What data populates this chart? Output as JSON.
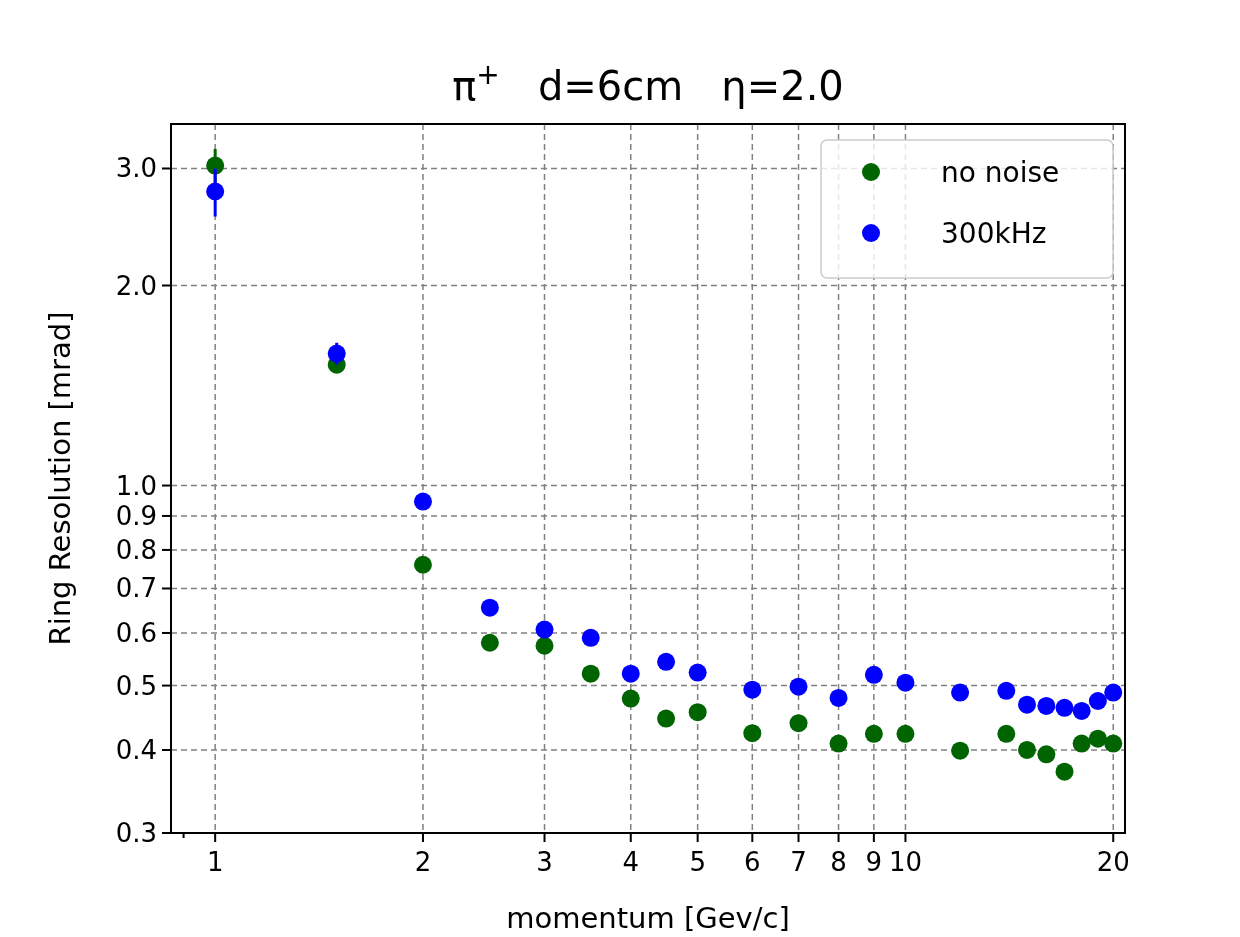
{
  "chart_data": {
    "type": "scatter",
    "title": "π$^{+}$   d=6cm   η=2.0",
    "xlabel": "momentum [Gev/c]",
    "ylabel": "Ring Resolution [mrad]",
    "log": "xy",
    "grid": true,
    "legend": "top right",
    "marker": "circle",
    "xlim": [
      0.863,
      20.8
    ],
    "ylim": [
      0.3,
      3.5
    ],
    "xticks": [
      {
        "value": 0.9,
        "label": null
      },
      1,
      2,
      3,
      4,
      5,
      6,
      7,
      8,
      9,
      10,
      20
    ],
    "yticks": [
      0.3,
      0.4,
      0.5,
      0.6,
      0.7,
      0.8,
      0.9,
      {
        "value": 1,
        "label": "1.0"
      },
      {
        "value": 2,
        "label": "2.0"
      },
      {
        "value": 3,
        "label": "3.0"
      }
    ],
    "x": [
      1,
      1.5,
      2,
      2.5,
      3,
      3.5,
      4,
      4.5,
      5,
      6,
      7,
      8,
      9,
      10,
      12,
      14,
      15,
      16,
      17,
      18,
      19,
      20
    ],
    "series": [
      {
        "name": "no noise",
        "color": "#006400",
        "values": [
          3.03,
          1.52,
          0.76,
          0.58,
          0.574,
          0.521,
          0.478,
          0.446,
          0.456,
          0.424,
          0.439,
          0.409,
          0.423,
          0.423,
          0.399,
          0.423,
          0.4,
          0.394,
          0.371,
          0.409,
          0.416,
          0.409
        ],
        "errors": [
          0.18,
          null,
          null,
          null,
          null,
          null,
          null,
          null,
          null,
          null,
          null,
          null,
          null,
          null,
          null,
          null,
          null,
          null,
          null,
          null,
          null,
          null
        ]
      },
      {
        "name": "300kHz",
        "color": "#0000ff",
        "values": [
          2.77,
          1.58,
          0.946,
          0.655,
          0.607,
          0.59,
          0.521,
          0.543,
          0.523,
          0.493,
          0.498,
          0.479,
          0.519,
          0.505,
          0.488,
          0.491,
          0.468,
          0.466,
          0.463,
          0.458,
          0.474,
          0.488
        ],
        "errors": [
          0.23,
          0.06,
          null,
          null,
          null,
          null,
          null,
          null,
          null,
          null,
          null,
          null,
          null,
          null,
          null,
          null,
          null,
          null,
          null,
          null,
          null,
          null
        ]
      }
    ]
  }
}
